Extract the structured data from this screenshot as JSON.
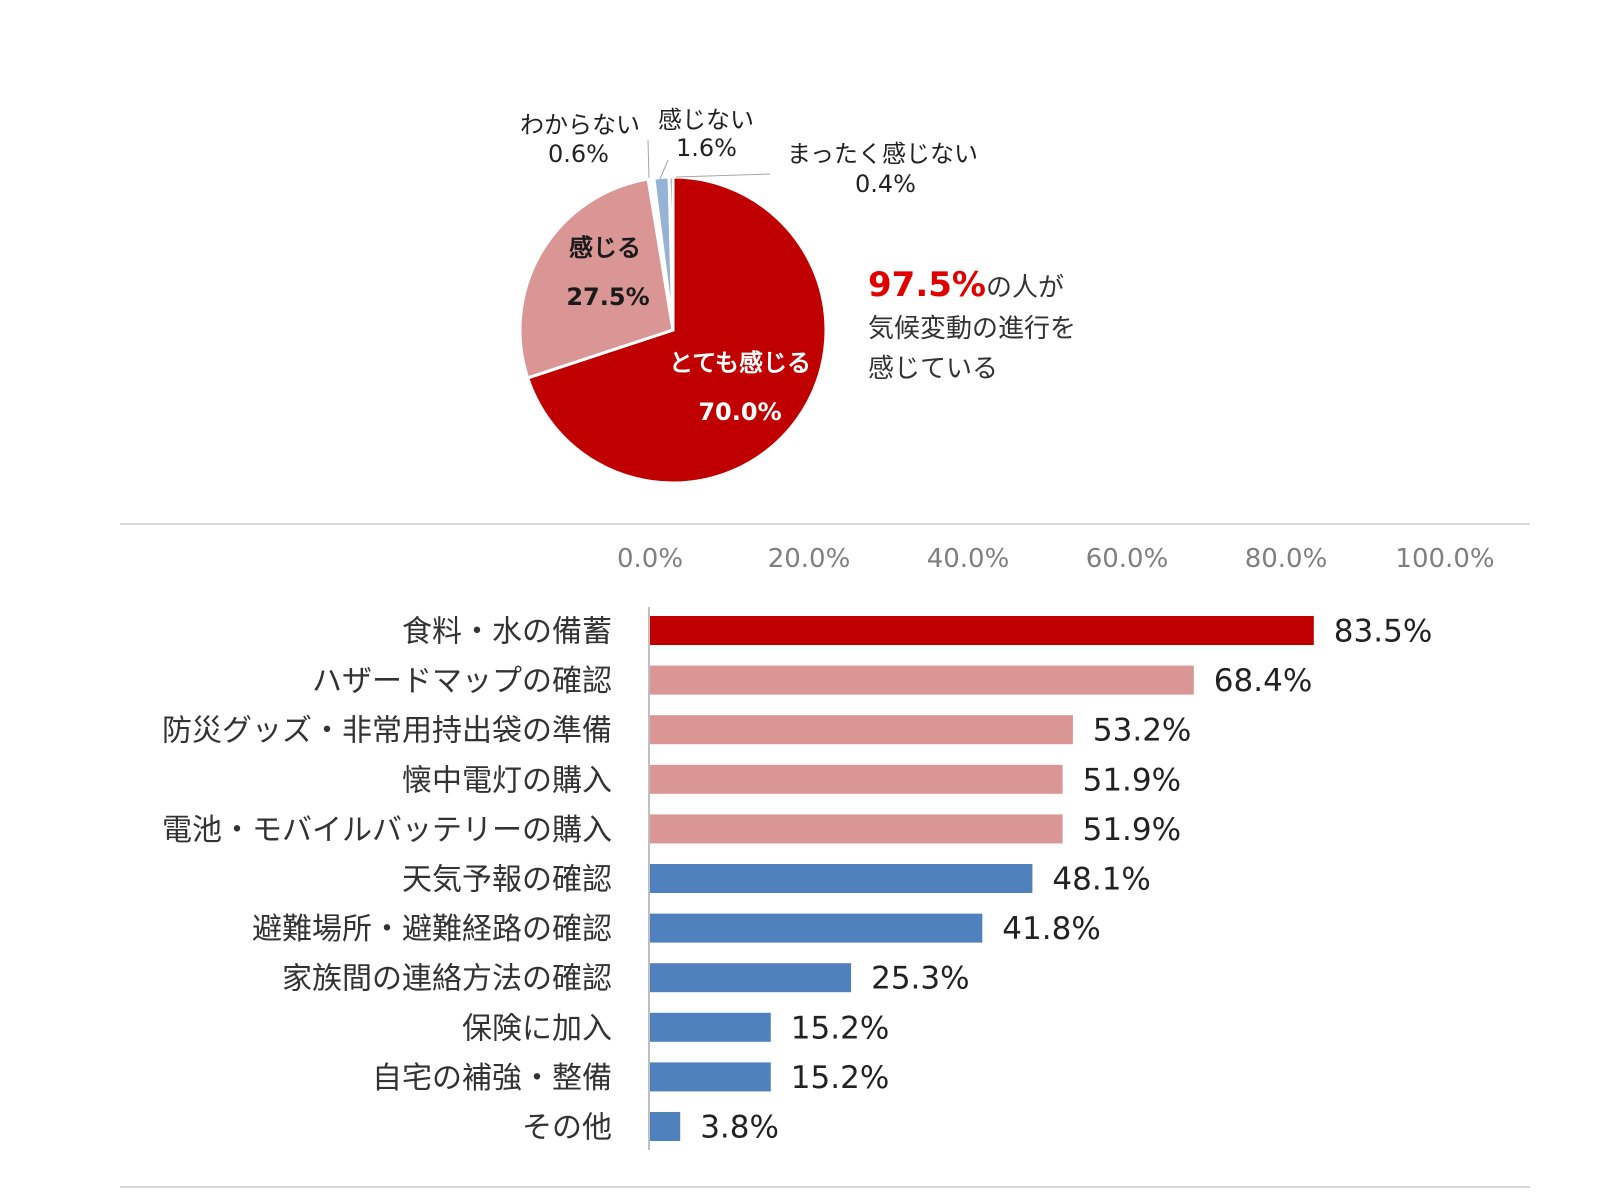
{
  "chart_data": [
    {
      "type": "pie",
      "slices": [
        {
          "label": "とても感じる",
          "value": 70.0,
          "value_label": "70.0%",
          "color": "#c00000"
        },
        {
          "label": "感じる",
          "value": 27.5,
          "value_label": "27.5%",
          "color": "#d99694"
        },
        {
          "label": "わからない",
          "value": 0.6,
          "value_label": "0.6%",
          "color": "#ffffff"
        },
        {
          "label": "感じない",
          "value": 1.6,
          "value_label": "1.6%",
          "color": "#95b3d7"
        },
        {
          "label": "まったく感じない",
          "value": 0.4,
          "value_label": "0.4%",
          "color": "#4f81bd"
        }
      ],
      "callout": {
        "highlight": "97.5%",
        "text1": "の人が",
        "text2": "気候変動の進行を",
        "text3": "感じている"
      }
    },
    {
      "type": "bar",
      "orientation": "horizontal",
      "categories": [
        "食料・水の備蓄",
        "ハザードマップの確認",
        "防災グッズ・非常用持出袋の準備",
        "懐中電灯の購入",
        "電池・モバイルバッテリーの購入",
        "天気予報の確認",
        "避難場所・避難経路の確認",
        "家族間の連絡方法の確認",
        "保険に加入",
        "自宅の補強・整備",
        "その他"
      ],
      "values": [
        83.5,
        68.4,
        53.2,
        51.9,
        51.9,
        48.1,
        41.8,
        25.3,
        15.2,
        15.2,
        3.8
      ],
      "value_labels": [
        "83.5%",
        "68.4%",
        "53.2%",
        "51.9%",
        "51.9%",
        "48.1%",
        "41.8%",
        "25.3%",
        "15.2%",
        "15.2%",
        "3.8%"
      ],
      "colors": [
        "#c00000",
        "#d99694",
        "#d99694",
        "#d99694",
        "#d99694",
        "#4f81bd",
        "#4f81bd",
        "#4f81bd",
        "#4f81bd",
        "#4f81bd",
        "#4f81bd"
      ],
      "xlim": [
        0,
        100
      ],
      "xticks": [
        "0.0%",
        "20.0%",
        "40.0%",
        "60.0%",
        "80.0%",
        "100.0%"
      ],
      "grid": false,
      "legend": "none"
    }
  ]
}
